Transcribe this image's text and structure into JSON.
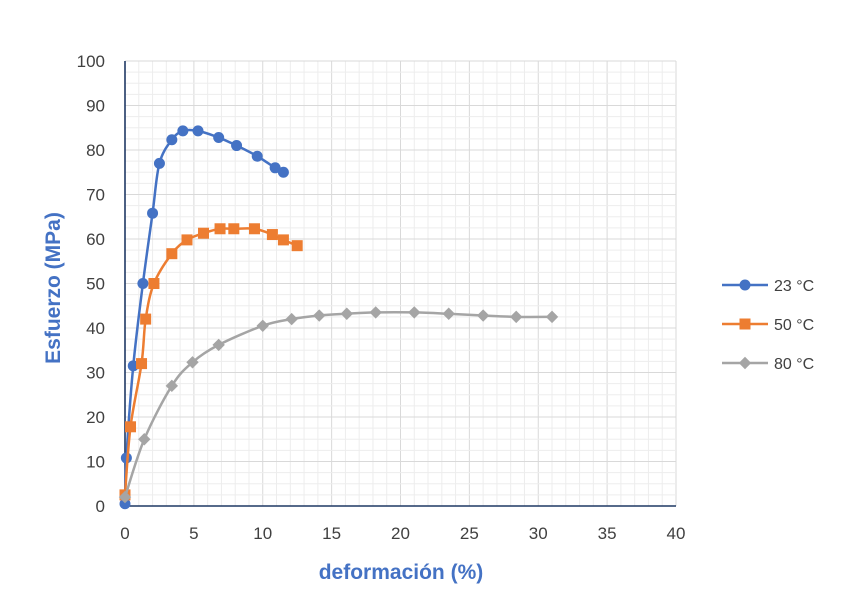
{
  "chart_data": {
    "type": "scatter",
    "title": "",
    "xlabel": "deformación (%)",
    "ylabel": "Esfuerzo (MPa)",
    "xlim": [
      0,
      40
    ],
    "ylim": [
      0,
      100
    ],
    "xticks": [
      0,
      5,
      10,
      15,
      20,
      25,
      30,
      35,
      40
    ],
    "yticks": [
      0,
      10,
      20,
      30,
      40,
      50,
      60,
      70,
      80,
      90,
      100
    ],
    "grid": true,
    "legend_position": "right",
    "series": [
      {
        "name": "23 °C",
        "color": "#4472C4",
        "marker": "circle",
        "x": [
          0.0,
          0.1,
          0.6,
          1.3,
          2.0,
          2.5,
          3.4,
          4.2,
          5.3,
          6.8,
          8.1,
          9.6,
          10.9,
          11.5
        ],
        "y": [
          0.5,
          10.8,
          31.5,
          50.0,
          65.8,
          77.0,
          82.3,
          84.3,
          84.3,
          82.8,
          81.0,
          78.6,
          76.0,
          75.0
        ]
      },
      {
        "name": "50 °C",
        "color": "#ED7D31",
        "marker": "square",
        "x": [
          0.0,
          0.4,
          1.2,
          1.5,
          2.1,
          3.4,
          4.5,
          5.7,
          6.9,
          7.9,
          9.4,
          10.7,
          11.5,
          12.5
        ],
        "y": [
          2.5,
          17.8,
          32.0,
          42.0,
          50.0,
          56.7,
          59.8,
          61.3,
          62.3,
          62.3,
          62.3,
          61.0,
          59.8,
          58.5
        ]
      },
      {
        "name": "80 °C",
        "color": "#A5A5A5",
        "marker": "diamond",
        "x": [
          0.0,
          1.4,
          3.4,
          4.9,
          6.8,
          10.0,
          12.1,
          14.1,
          16.1,
          18.2,
          21.0,
          23.5,
          26.0,
          28.4,
          31.0
        ],
        "y": [
          2.0,
          15.0,
          27.0,
          32.3,
          36.2,
          40.5,
          42.0,
          42.8,
          43.2,
          43.5,
          43.5,
          43.2,
          42.8,
          42.5,
          42.5
        ]
      }
    ]
  }
}
